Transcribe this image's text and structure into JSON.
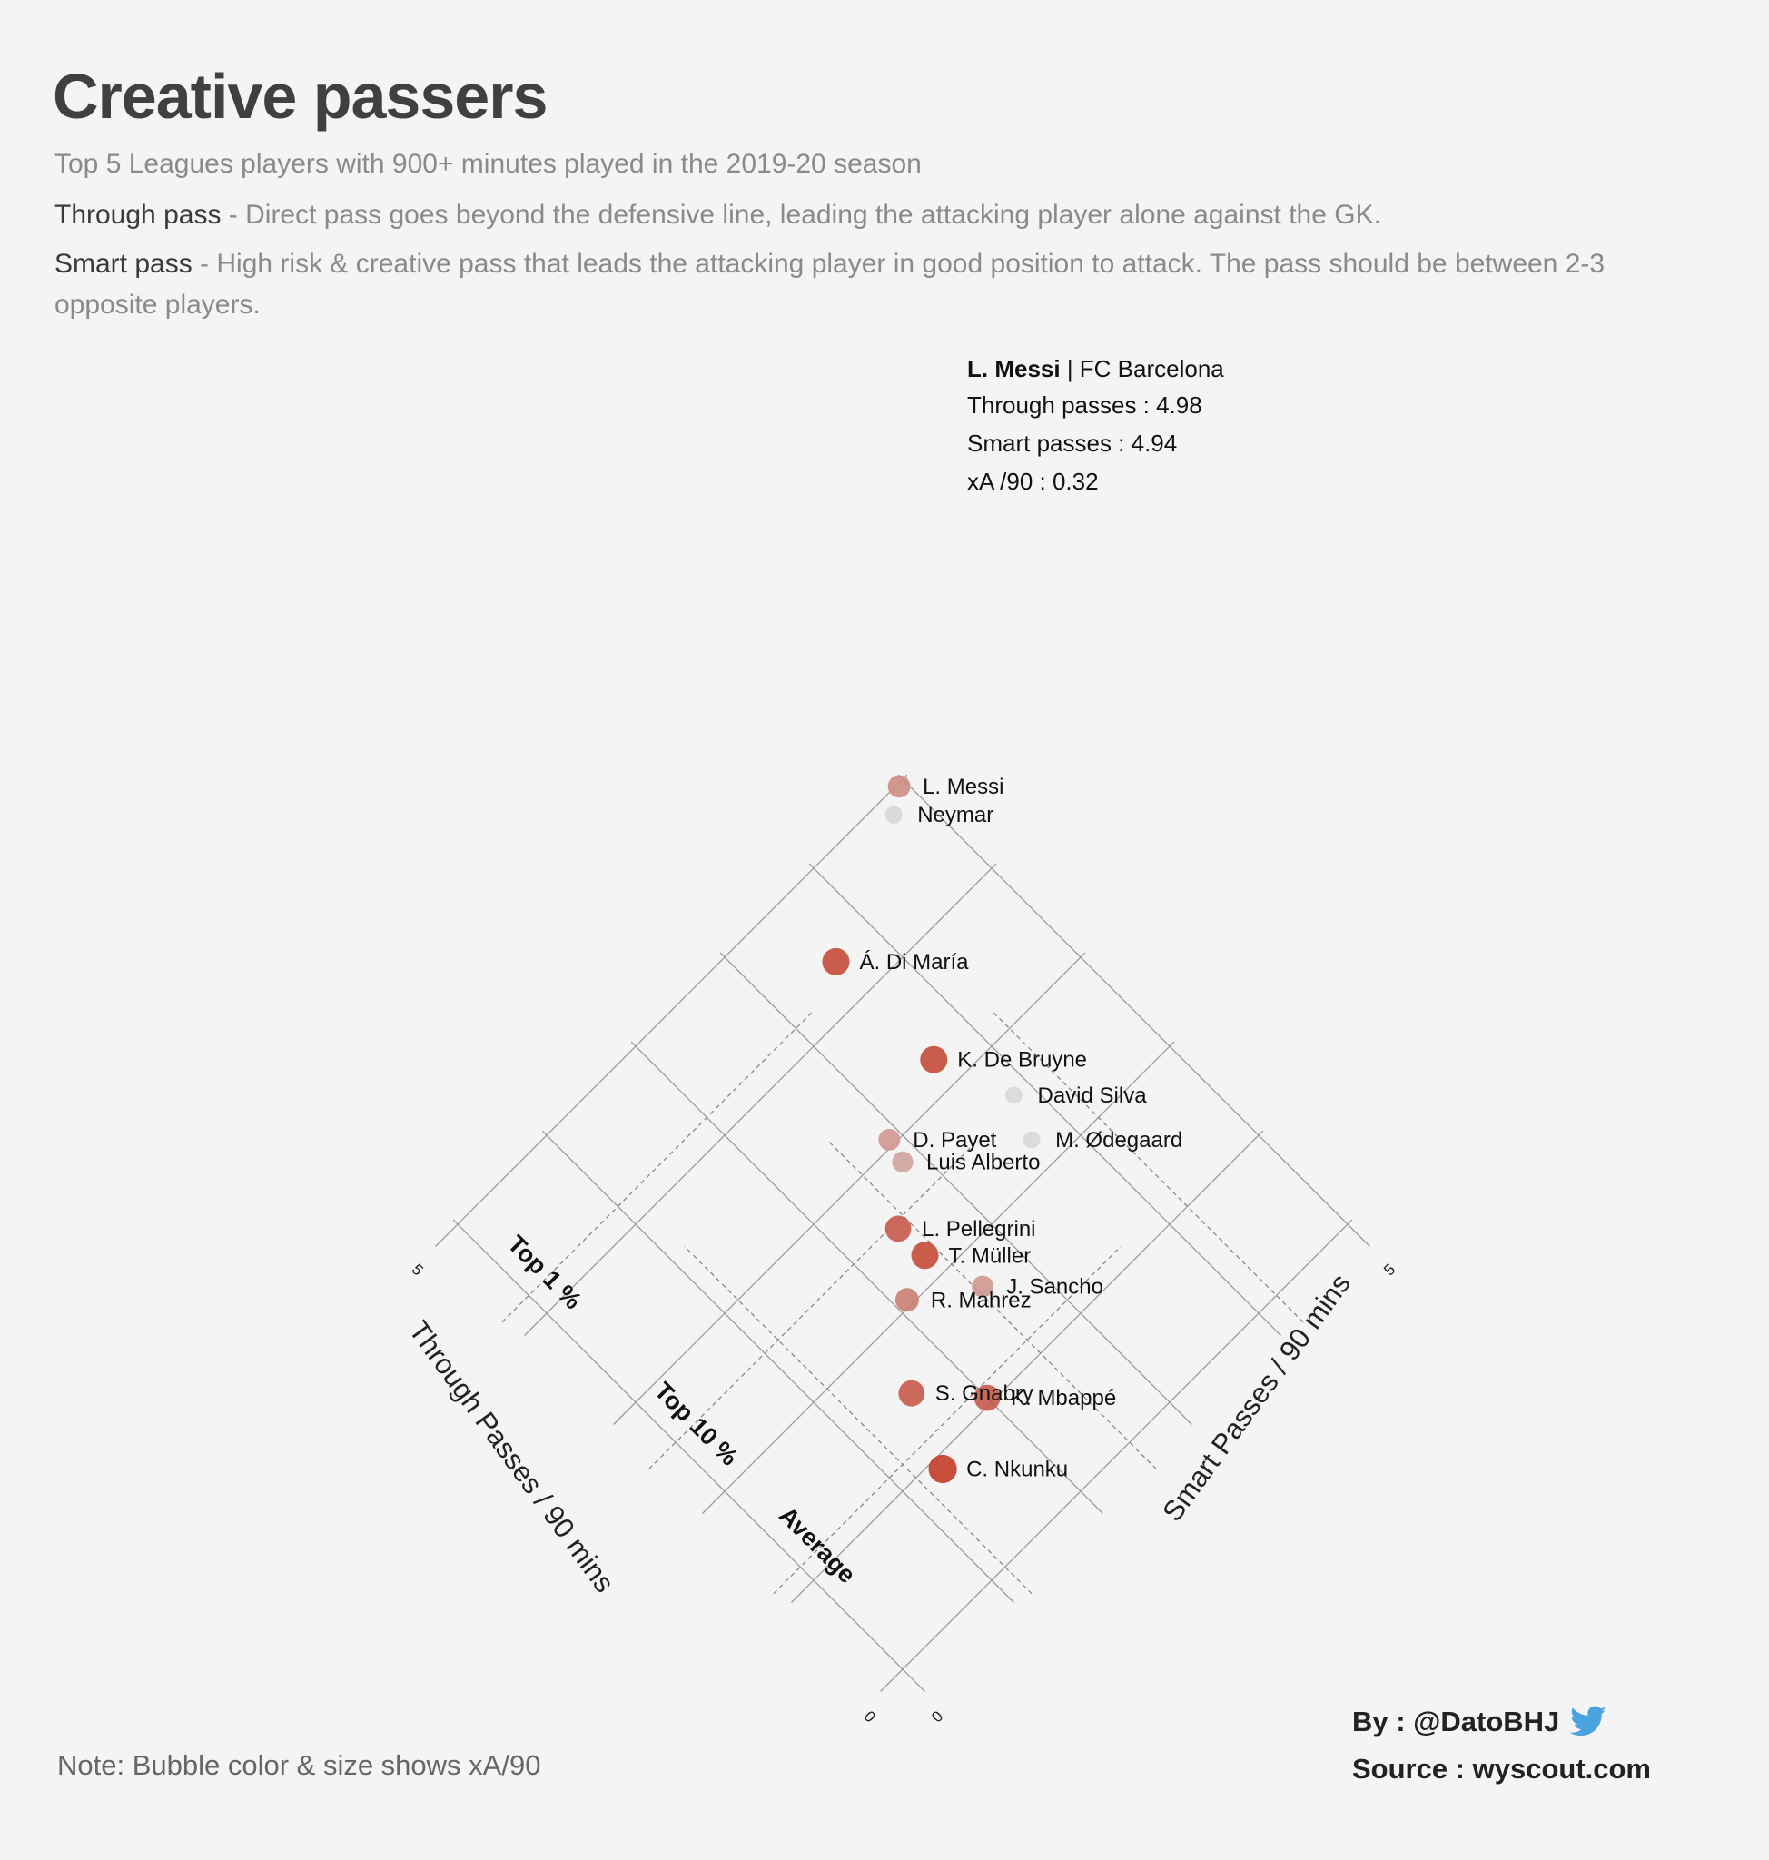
{
  "title": "Creative passers",
  "subtitle": "Top 5 Leagues players with 900+ minutes played in the 2019-20 season",
  "definitions": {
    "through_term": "Through pass",
    "through_text": " - Direct pass goes beyond the defensive line, leading the attacking player alone against the GK.",
    "smart_term": "Smart pass",
    "smart_text": " - High risk & creative pass that leads the attacking player in good position to attack. The pass should be between 2-3 opposite players."
  },
  "note": "Note: Bubble color & size shows xA/90",
  "credits": {
    "by": "By : @DatoBHJ",
    "source": "Source : wyscout.com",
    "icon": "twitter-bird-icon"
  },
  "colors": {
    "background": "#f4f4f4",
    "high_xa": "#c0311c",
    "mid_xa": "#d9d9d9",
    "low_xa": "#a9bdf0",
    "grid": "#9a9a9a"
  },
  "chart_data": {
    "type": "scatter",
    "rotation": "diamond (axes rotated 45 degrees)",
    "xlabel": "Through Passes / 90 mins",
    "ylabel": "Smart Passes / 90 mins",
    "xlim": [
      0,
      5
    ],
    "ylim": [
      0,
      5
    ],
    "tick_labels": {
      "x": [
        "0",
        "5"
      ],
      "y": [
        "0",
        "5"
      ]
    },
    "encoding": "Bubble color & size shows xA/90",
    "reference_lines": [
      {
        "label": "Average",
        "value": 1.15
      },
      {
        "label": "Top 10 %",
        "value": 2.55
      },
      {
        "label": "Top 1 %",
        "value": 4.2
      }
    ],
    "callout": {
      "name": "L. Messi",
      "team": "FC Barcelona",
      "through_label": "Through passes : 4.98",
      "smart_label": "Smart passes : 4.94",
      "xa_label": "xA /90 : 0.32"
    },
    "labeled_points": [
      {
        "label": "L. Messi",
        "x": 4.98,
        "y": 4.94,
        "xa": 0.32
      },
      {
        "label": "Neymar",
        "x": 4.85,
        "y": 4.75,
        "xa": 0.18
      },
      {
        "label": "Á. Di María",
        "x": 4.35,
        "y": 3.6,
        "xa": 0.45
      },
      {
        "label": "K. De Bruyne",
        "x": 3.25,
        "y": 3.6,
        "xa": 0.45
      },
      {
        "label": "David Silva",
        "x": 2.6,
        "y": 3.85,
        "xa": 0.17
      },
      {
        "label": "D. Payet",
        "x": 3.05,
        "y": 2.9,
        "xa": 0.3
      },
      {
        "label": "M. Ødegaard",
        "x": 2.25,
        "y": 3.7,
        "xa": 0.17
      },
      {
        "label": "Luis Alberto",
        "x": 2.85,
        "y": 2.85,
        "xa": 0.28
      },
      {
        "label": "L. Pellegrini",
        "x": 2.5,
        "y": 2.45,
        "xa": 0.42
      },
      {
        "label": "T. Müller",
        "x": 2.2,
        "y": 2.45,
        "xa": 0.45
      },
      {
        "label": "J. Sancho",
        "x": 1.7,
        "y": 2.6,
        "xa": 0.3
      },
      {
        "label": "R. Mahrez",
        "x": 2.05,
        "y": 2.1,
        "xa": 0.35
      },
      {
        "label": "S. Gnabry",
        "x": 1.5,
        "y": 1.6,
        "xa": 0.42
      },
      {
        "label": "K. Mbappé",
        "x": 1.05,
        "y": 2.0,
        "xa": 0.42
      },
      {
        "label": "C. Nkunku",
        "x": 0.9,
        "y": 1.35,
        "xa": 0.48
      }
    ]
  }
}
